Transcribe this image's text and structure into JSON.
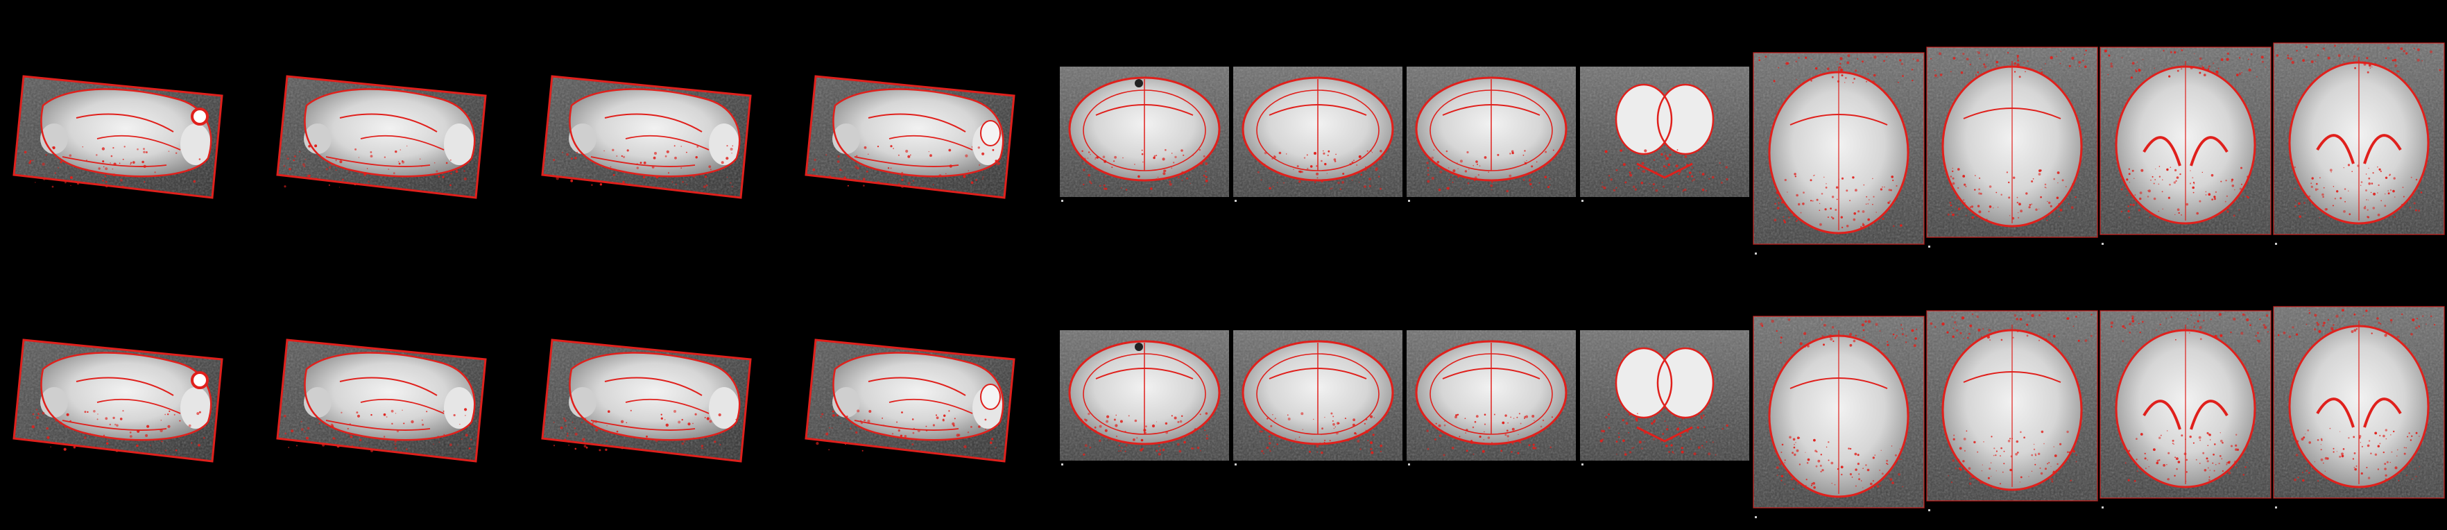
{
  "background": "#000000",
  "overlay_color": "#e0201c",
  "tissue_color": "#dcdcdc",
  "rows": [
    {
      "name": "row-1",
      "groups": [
        {
          "view": "sagittal",
          "count": 4
        },
        {
          "view": "coronal",
          "count": 4
        },
        {
          "view": "axial",
          "count": 4
        }
      ]
    },
    {
      "name": "row-2",
      "groups": [
        {
          "view": "sagittal",
          "count": 4
        },
        {
          "view": "coronal",
          "count": 4
        },
        {
          "view": "axial",
          "count": 4
        }
      ]
    }
  ]
}
